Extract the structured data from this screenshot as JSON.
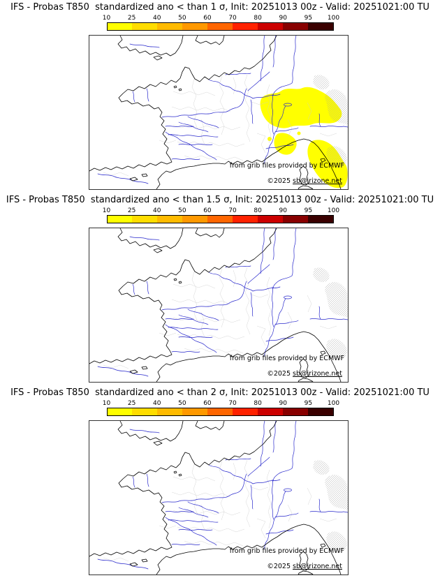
{
  "colors": {
    "anomaly": "#ffff00",
    "rivers": "#2929cc",
    "coastline": "#000000",
    "boundaries": "#cccccc",
    "terrain_hatch": "#9a9a9a"
  },
  "colorbar": {
    "ticks": [
      "10",
      "25",
      "40",
      "50",
      "60",
      "70",
      "80",
      "90",
      "95",
      "100"
    ],
    "segment_colors": [
      "#ffff00",
      "#ffdd00",
      "#ffbb00",
      "#ff9900",
      "#ff6600",
      "#ff2200",
      "#cc0000",
      "#880000",
      "#3a0000"
    ]
  },
  "panels": [
    {
      "title": "IFS - Probas T850  standardized ano < than 1 σ, Init: 20251013 00z - Valid: 20251021:00 TU",
      "credit": "from grib files provided by ECMWF",
      "copyright_prefix": "©2025 ",
      "copyright_link": "sb@irizone.net"
    },
    {
      "title": "IFS - Probas T850  standardized ano < than 1.5 σ, Init: 20251013 00z - Valid: 20251021:00 TU",
      "credit": "from grib files provided by ECMWF",
      "copyright_prefix": "©2025 ",
      "copyright_link": "sb@irizone.net"
    },
    {
      "title": "IFS - Probas T850  standardized ano < than 2 σ, Init: 20251013 00z - Valid: 20251021:00 TU",
      "credit": "from grib files provided by ECMWF",
      "copyright_prefix": "©2025 ",
      "copyright_link": "sb@irizone.net"
    }
  ]
}
